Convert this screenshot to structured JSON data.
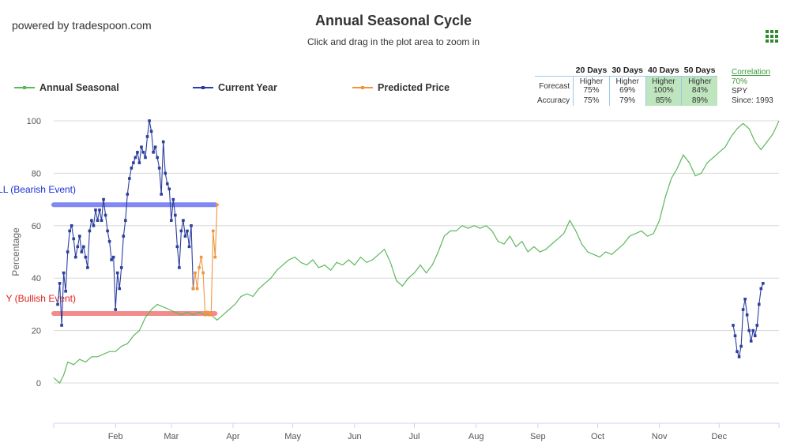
{
  "brand": "powered by tradespoon.com",
  "header": {
    "title": "Annual Seasonal Cycle",
    "subtitle": "Click and drag in the plot area to zoom in"
  },
  "legend": [
    {
      "name": "Annual Seasonal",
      "color": "#5cb85c"
    },
    {
      "name": "Current Year",
      "color": "#2c3e9e"
    },
    {
      "name": "Predicted Price",
      "color": "#f0953d"
    }
  ],
  "stats_table": {
    "headers": [
      "20 Days",
      "30 Days",
      "40 Days",
      "50 Days"
    ],
    "forecast_label": "Forecast",
    "forecast": [
      {
        "dir": "Higher",
        "pct": "75%",
        "highlight": false
      },
      {
        "dir": "Higher",
        "pct": "69%",
        "highlight": false
      },
      {
        "dir": "Higher",
        "pct": "100%",
        "highlight": true
      },
      {
        "dir": "Higher",
        "pct": "84%",
        "highlight": true
      }
    ],
    "accuracy_label": "Accuracy",
    "accuracy": [
      {
        "pct": "75%",
        "highlight": false
      },
      {
        "pct": "79%",
        "highlight": false
      },
      {
        "pct": "85%",
        "highlight": true
      },
      {
        "pct": "89%",
        "highlight": true
      }
    ]
  },
  "correlation": {
    "label": "Correlation",
    "value": "70%",
    "symbol": "SPY",
    "since": "Since: 1993"
  },
  "chart_data": {
    "type": "line",
    "ylabel": "Percentage",
    "ylim": [
      0,
      100
    ],
    "yticks": [
      0,
      20,
      40,
      60,
      80,
      100
    ],
    "xlim_day": [
      0,
      364
    ],
    "months": [
      {
        "label": "Feb",
        "day": 31
      },
      {
        "label": "Mar",
        "day": 59
      },
      {
        "label": "Apr",
        "day": 90
      },
      {
        "label": "May",
        "day": 120
      },
      {
        "label": "Jun",
        "day": 151
      },
      {
        "label": "Jul",
        "day": 181
      },
      {
        "label": "Aug",
        "day": 212
      },
      {
        "label": "Sep",
        "day": 243
      },
      {
        "label": "Oct",
        "day": 273
      },
      {
        "label": "Nov",
        "day": 304
      },
      {
        "label": "Dec",
        "day": 334
      }
    ],
    "grid": true,
    "bands": [
      {
        "label": "LL (Bearish Event)",
        "y": 68,
        "color": "#6b73f0",
        "text_color": "#1a2fd6",
        "x_end_day": 81
      },
      {
        "label": "Y (Bullish Event)",
        "y": 26.5,
        "color": "#f07878",
        "text_color": "#e02020",
        "x_end_day": 81
      }
    ],
    "series": [
      {
        "name": "Annual Seasonal",
        "color": "#5cb85c",
        "points": [
          [
            0,
            2
          ],
          [
            3,
            0
          ],
          [
            5,
            3
          ],
          [
            7,
            8
          ],
          [
            10,
            7
          ],
          [
            13,
            9
          ],
          [
            16,
            8
          ],
          [
            19,
            10
          ],
          [
            22,
            10
          ],
          [
            25,
            11
          ],
          [
            28,
            12
          ],
          [
            31,
            12
          ],
          [
            34,
            14
          ],
          [
            37,
            15
          ],
          [
            40,
            18
          ],
          [
            43,
            20
          ],
          [
            46,
            25
          ],
          [
            49,
            28
          ],
          [
            52,
            30
          ],
          [
            55,
            29
          ],
          [
            58,
            28
          ],
          [
            61,
            27
          ],
          [
            64,
            26
          ],
          [
            67,
            27
          ],
          [
            70,
            26
          ],
          [
            73,
            27
          ],
          [
            76,
            26
          ],
          [
            79,
            26
          ],
          [
            82,
            24
          ],
          [
            85,
            26
          ],
          [
            88,
            28
          ],
          [
            91,
            30
          ],
          [
            94,
            33
          ],
          [
            97,
            34
          ],
          [
            100,
            33
          ],
          [
            103,
            36
          ],
          [
            106,
            38
          ],
          [
            109,
            40
          ],
          [
            112,
            43
          ],
          [
            115,
            45
          ],
          [
            118,
            47
          ],
          [
            121,
            48
          ],
          [
            124,
            46
          ],
          [
            127,
            45
          ],
          [
            130,
            47
          ],
          [
            133,
            44
          ],
          [
            136,
            45
          ],
          [
            139,
            43
          ],
          [
            142,
            46
          ],
          [
            145,
            45
          ],
          [
            148,
            47
          ],
          [
            151,
            45
          ],
          [
            154,
            48
          ],
          [
            157,
            46
          ],
          [
            160,
            47
          ],
          [
            163,
            49
          ],
          [
            166,
            51
          ],
          [
            169,
            46
          ],
          [
            172,
            39
          ],
          [
            175,
            37
          ],
          [
            178,
            40
          ],
          [
            181,
            42
          ],
          [
            184,
            45
          ],
          [
            187,
            42
          ],
          [
            190,
            45
          ],
          [
            193,
            50
          ],
          [
            196,
            56
          ],
          [
            199,
            58
          ],
          [
            202,
            58
          ],
          [
            205,
            60
          ],
          [
            208,
            59
          ],
          [
            211,
            60
          ],
          [
            214,
            59
          ],
          [
            217,
            60
          ],
          [
            220,
            58
          ],
          [
            223,
            54
          ],
          [
            226,
            53
          ],
          [
            229,
            56
          ],
          [
            232,
            52
          ],
          [
            235,
            54
          ],
          [
            238,
            50
          ],
          [
            241,
            52
          ],
          [
            244,
            50
          ],
          [
            247,
            51
          ],
          [
            250,
            53
          ],
          [
            253,
            55
          ],
          [
            256,
            57
          ],
          [
            259,
            62
          ],
          [
            262,
            58
          ],
          [
            265,
            53
          ],
          [
            268,
            50
          ],
          [
            271,
            49
          ],
          [
            274,
            48
          ],
          [
            277,
            50
          ],
          [
            280,
            49
          ],
          [
            283,
            51
          ],
          [
            286,
            53
          ],
          [
            289,
            56
          ],
          [
            292,
            57
          ],
          [
            295,
            58
          ],
          [
            298,
            56
          ],
          [
            301,
            57
          ],
          [
            304,
            62
          ],
          [
            307,
            71
          ],
          [
            310,
            78
          ],
          [
            313,
            82
          ],
          [
            316,
            87
          ],
          [
            319,
            84
          ],
          [
            322,
            79
          ],
          [
            325,
            80
          ],
          [
            328,
            84
          ],
          [
            331,
            86
          ],
          [
            334,
            88
          ],
          [
            337,
            90
          ],
          [
            340,
            94
          ],
          [
            343,
            97
          ],
          [
            346,
            99
          ],
          [
            349,
            97
          ],
          [
            352,
            92
          ],
          [
            355,
            89
          ],
          [
            358,
            92
          ],
          [
            361,
            95
          ],
          [
            364,
            100
          ]
        ]
      },
      {
        "name": "Current Year",
        "color": "#2c3e9e",
        "points": [
          [
            2,
            30
          ],
          [
            3,
            38
          ],
          [
            4,
            22
          ],
          [
            5,
            42
          ],
          [
            6,
            35
          ],
          [
            7,
            50
          ],
          [
            8,
            58
          ],
          [
            9,
            60
          ],
          [
            10,
            55
          ],
          [
            11,
            48
          ],
          [
            12,
            52
          ],
          [
            13,
            56
          ],
          [
            14,
            50
          ],
          [
            15,
            52
          ],
          [
            16,
            48
          ],
          [
            17,
            44
          ],
          [
            18,
            58
          ],
          [
            19,
            62
          ],
          [
            20,
            60
          ],
          [
            21,
            66
          ],
          [
            22,
            62
          ],
          [
            23,
            66
          ],
          [
            24,
            62
          ],
          [
            25,
            70
          ],
          [
            26,
            64
          ],
          [
            27,
            58
          ],
          [
            28,
            54
          ],
          [
            29,
            47
          ],
          [
            30,
            48
          ],
          [
            31,
            28
          ],
          [
            32,
            42
          ],
          [
            33,
            36
          ],
          [
            34,
            44
          ],
          [
            35,
            56
          ],
          [
            36,
            62
          ],
          [
            37,
            72
          ],
          [
            38,
            78
          ],
          [
            39,
            82
          ],
          [
            40,
            84
          ],
          [
            41,
            86
          ],
          [
            42,
            88
          ],
          [
            43,
            84
          ],
          [
            44,
            90
          ],
          [
            45,
            88
          ],
          [
            46,
            86
          ],
          [
            47,
            94
          ],
          [
            48,
            100
          ],
          [
            49,
            96
          ],
          [
            50,
            88
          ],
          [
            51,
            90
          ],
          [
            52,
            86
          ],
          [
            53,
            82
          ],
          [
            54,
            72
          ],
          [
            55,
            92
          ],
          [
            56,
            80
          ],
          [
            57,
            76
          ],
          [
            58,
            74
          ],
          [
            59,
            62
          ],
          [
            60,
            70
          ],
          [
            61,
            64
          ],
          [
            62,
            52
          ],
          [
            63,
            44
          ],
          [
            64,
            58
          ],
          [
            65,
            62
          ],
          [
            66,
            56
          ],
          [
            67,
            58
          ],
          [
            68,
            52
          ],
          [
            69,
            60
          ],
          [
            70,
            36
          ],
          [
            341,
            22
          ],
          [
            342,
            18
          ],
          [
            343,
            12
          ],
          [
            344,
            10
          ],
          [
            345,
            14
          ],
          [
            346,
            28
          ],
          [
            347,
            32
          ],
          [
            348,
            26
          ],
          [
            349,
            20
          ],
          [
            350,
            16
          ],
          [
            351,
            20
          ],
          [
            352,
            18
          ],
          [
            353,
            22
          ],
          [
            354,
            30
          ],
          [
            355,
            36
          ],
          [
            356,
            38
          ]
        ]
      },
      {
        "name": "Predicted Price",
        "color": "#f0953d",
        "points": [
          [
            70,
            36
          ],
          [
            71,
            42
          ],
          [
            72,
            36
          ],
          [
            73,
            44
          ],
          [
            74,
            48
          ],
          [
            75,
            42
          ],
          [
            76,
            26
          ],
          [
            77,
            27
          ],
          [
            78,
            26
          ],
          [
            79,
            26
          ],
          [
            80,
            58
          ],
          [
            81,
            48
          ],
          [
            82,
            68
          ]
        ]
      }
    ]
  }
}
